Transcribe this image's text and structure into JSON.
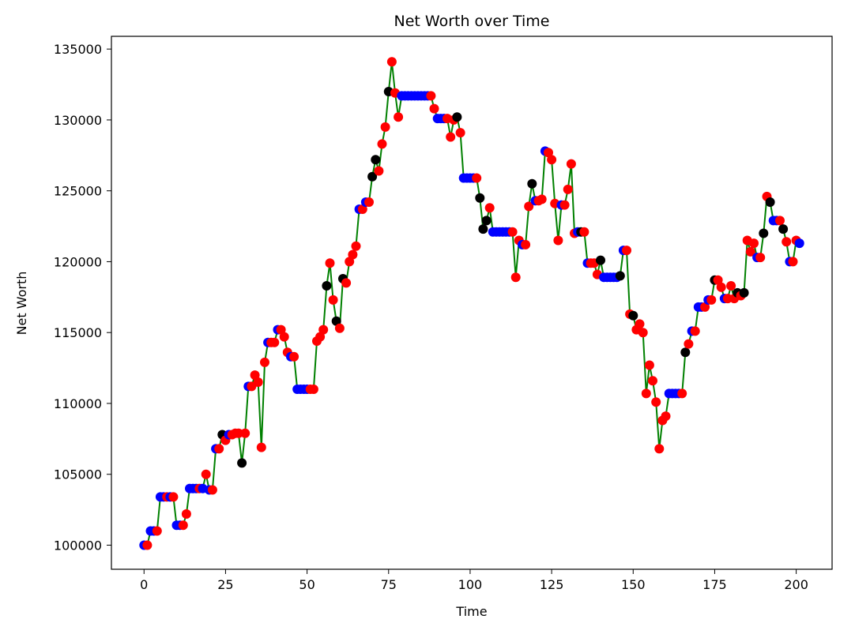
{
  "chart_data": {
    "type": "scatter",
    "title": "Net Worth over Time",
    "xlabel": "Time",
    "ylabel": "Net Worth",
    "xlim": [
      -10,
      211
    ],
    "ylim": [
      98300,
      135900
    ],
    "xticks": [
      0,
      25,
      50,
      75,
      100,
      125,
      150,
      175,
      200
    ],
    "yticks": [
      100000,
      105000,
      110000,
      115000,
      120000,
      125000,
      130000,
      135000
    ],
    "grid": false,
    "line_color": "#008000",
    "marker_colors": {
      "B": "#0000ff",
      "S": "#ff0000",
      "H": "#000000"
    },
    "points": [
      [
        0,
        100000,
        "B"
      ],
      [
        1,
        100000,
        "S"
      ],
      [
        2,
        101000,
        "B"
      ],
      [
        3,
        101000,
        "B"
      ],
      [
        4,
        101000,
        "S"
      ],
      [
        5,
        103400,
        "B"
      ],
      [
        6,
        103400,
        "B"
      ],
      [
        7,
        103400,
        "S"
      ],
      [
        8,
        103400,
        "B"
      ],
      [
        9,
        103400,
        "S"
      ],
      [
        10,
        101400,
        "B"
      ],
      [
        11,
        101400,
        "B"
      ],
      [
        12,
        101400,
        "S"
      ],
      [
        13,
        102200,
        "S"
      ],
      [
        14,
        104000,
        "B"
      ],
      [
        15,
        104000,
        "B"
      ],
      [
        16,
        104000,
        "B"
      ],
      [
        17,
        104000,
        "S"
      ],
      [
        18,
        104000,
        "B"
      ],
      [
        19,
        105000,
        "S"
      ],
      [
        20,
        103900,
        "B"
      ],
      [
        21,
        103900,
        "S"
      ],
      [
        22,
        106800,
        "B"
      ],
      [
        23,
        106800,
        "S"
      ],
      [
        24,
        107800,
        "H"
      ],
      [
        25,
        107400,
        "S"
      ],
      [
        26,
        107800,
        "B"
      ],
      [
        27,
        107800,
        "S"
      ],
      [
        28,
        107900,
        "S"
      ],
      [
        29,
        107900,
        "S"
      ],
      [
        30,
        105800,
        "H"
      ],
      [
        31,
        107900,
        "S"
      ],
      [
        32,
        111200,
        "B"
      ],
      [
        33,
        111200,
        "S"
      ],
      [
        34,
        112000,
        "S"
      ],
      [
        35,
        111500,
        "S"
      ],
      [
        36,
        106900,
        "S"
      ],
      [
        37,
        112900,
        "S"
      ],
      [
        38,
        114300,
        "B"
      ],
      [
        39,
        114300,
        "S"
      ],
      [
        40,
        114300,
        "S"
      ],
      [
        41,
        115200,
        "B"
      ],
      [
        42,
        115200,
        "S"
      ],
      [
        43,
        114700,
        "S"
      ],
      [
        44,
        113600,
        "S"
      ],
      [
        45,
        113300,
        "B"
      ],
      [
        46,
        113300,
        "S"
      ],
      [
        47,
        111000,
        "B"
      ],
      [
        48,
        111000,
        "B"
      ],
      [
        49,
        111000,
        "B"
      ],
      [
        50,
        111000,
        "B"
      ],
      [
        51,
        111000,
        "S"
      ],
      [
        52,
        111000,
        "S"
      ],
      [
        53,
        114400,
        "S"
      ],
      [
        54,
        114700,
        "S"
      ],
      [
        55,
        115200,
        "S"
      ],
      [
        56,
        118300,
        "H"
      ],
      [
        57,
        119900,
        "S"
      ],
      [
        58,
        117300,
        "S"
      ],
      [
        59,
        115800,
        "H"
      ],
      [
        60,
        115300,
        "S"
      ],
      [
        61,
        118800,
        "H"
      ],
      [
        62,
        118500,
        "S"
      ],
      [
        63,
        120000,
        "S"
      ],
      [
        64,
        120500,
        "S"
      ],
      [
        65,
        121100,
        "S"
      ],
      [
        66,
        123700,
        "B"
      ],
      [
        67,
        123700,
        "S"
      ],
      [
        68,
        124200,
        "B"
      ],
      [
        69,
        124200,
        "S"
      ],
      [
        70,
        126000,
        "H"
      ],
      [
        71,
        127200,
        "H"
      ],
      [
        72,
        126400,
        "S"
      ],
      [
        73,
        128300,
        "S"
      ],
      [
        74,
        129500,
        "S"
      ],
      [
        75,
        132000,
        "H"
      ],
      [
        76,
        134100,
        "S"
      ],
      [
        77,
        131900,
        "S"
      ],
      [
        78,
        130200,
        "S"
      ],
      [
        79,
        131700,
        "B"
      ],
      [
        80,
        131700,
        "B"
      ],
      [
        81,
        131700,
        "B"
      ],
      [
        82,
        131700,
        "B"
      ],
      [
        83,
        131700,
        "B"
      ],
      [
        84,
        131700,
        "B"
      ],
      [
        85,
        131700,
        "B"
      ],
      [
        86,
        131700,
        "B"
      ],
      [
        87,
        131700,
        "B"
      ],
      [
        88,
        131700,
        "S"
      ],
      [
        89,
        130800,
        "S"
      ],
      [
        90,
        130100,
        "B"
      ],
      [
        91,
        130100,
        "B"
      ],
      [
        92,
        130100,
        "B"
      ],
      [
        93,
        130100,
        "S"
      ],
      [
        94,
        128800,
        "S"
      ],
      [
        95,
        130000,
        "S"
      ],
      [
        96,
        130200,
        "H"
      ],
      [
        97,
        129100,
        "S"
      ],
      [
        98,
        125900,
        "B"
      ],
      [
        99,
        125900,
        "B"
      ],
      [
        100,
        125900,
        "B"
      ],
      [
        101,
        125900,
        "B"
      ],
      [
        102,
        125900,
        "S"
      ],
      [
        103,
        124500,
        "H"
      ],
      [
        104,
        122300,
        "H"
      ],
      [
        105,
        122900,
        "H"
      ],
      [
        106,
        123800,
        "S"
      ],
      [
        107,
        122100,
        "B"
      ],
      [
        108,
        122100,
        "B"
      ],
      [
        109,
        122100,
        "B"
      ],
      [
        110,
        122100,
        "B"
      ],
      [
        111,
        122100,
        "B"
      ],
      [
        112,
        122100,
        "B"
      ],
      [
        113,
        122100,
        "S"
      ],
      [
        114,
        118900,
        "S"
      ],
      [
        115,
        121500,
        "S"
      ],
      [
        116,
        121200,
        "B"
      ],
      [
        117,
        121200,
        "S"
      ],
      [
        118,
        123900,
        "S"
      ],
      [
        119,
        125500,
        "H"
      ],
      [
        120,
        124300,
        "B"
      ],
      [
        121,
        124300,
        "S"
      ],
      [
        122,
        124400,
        "S"
      ],
      [
        123,
        127800,
        "B"
      ],
      [
        124,
        127700,
        "S"
      ],
      [
        125,
        127200,
        "S"
      ],
      [
        126,
        124100,
        "S"
      ],
      [
        127,
        121500,
        "S"
      ],
      [
        128,
        124000,
        "B"
      ],
      [
        129,
        124000,
        "S"
      ],
      [
        130,
        125100,
        "S"
      ],
      [
        131,
        126900,
        "S"
      ],
      [
        132,
        122000,
        "S"
      ],
      [
        133,
        122100,
        "B"
      ],
      [
        134,
        122100,
        "H"
      ],
      [
        135,
        122100,
        "S"
      ],
      [
        136,
        119900,
        "B"
      ],
      [
        137,
        119900,
        "S"
      ],
      [
        138,
        119900,
        "S"
      ],
      [
        139,
        119100,
        "S"
      ],
      [
        140,
        120100,
        "H"
      ],
      [
        141,
        118900,
        "B"
      ],
      [
        142,
        118900,
        "B"
      ],
      [
        143,
        118900,
        "B"
      ],
      [
        144,
        118900,
        "B"
      ],
      [
        145,
        118900,
        "B"
      ],
      [
        146,
        119000,
        "H"
      ],
      [
        147,
        120800,
        "B"
      ],
      [
        148,
        120800,
        "S"
      ],
      [
        149,
        116300,
        "S"
      ],
      [
        150,
        116200,
        "H"
      ],
      [
        151,
        115200,
        "S"
      ],
      [
        152,
        115600,
        "S"
      ],
      [
        153,
        115000,
        "S"
      ],
      [
        154,
        110700,
        "S"
      ],
      [
        155,
        112700,
        "S"
      ],
      [
        156,
        111600,
        "S"
      ],
      [
        157,
        110100,
        "S"
      ],
      [
        158,
        106800,
        "S"
      ],
      [
        159,
        108800,
        "S"
      ],
      [
        160,
        109100,
        "S"
      ],
      [
        161,
        110700,
        "B"
      ],
      [
        162,
        110700,
        "B"
      ],
      [
        163,
        110700,
        "B"
      ],
      [
        164,
        110700,
        "B"
      ],
      [
        165,
        110700,
        "S"
      ],
      [
        166,
        113600,
        "H"
      ],
      [
        167,
        114200,
        "S"
      ],
      [
        168,
        115100,
        "B"
      ],
      [
        169,
        115100,
        "S"
      ],
      [
        170,
        116800,
        "B"
      ],
      [
        171,
        116800,
        "B"
      ],
      [
        172,
        116800,
        "S"
      ],
      [
        173,
        117300,
        "B"
      ],
      [
        174,
        117300,
        "S"
      ],
      [
        175,
        118700,
        "H"
      ],
      [
        176,
        118700,
        "S"
      ],
      [
        177,
        118200,
        "S"
      ],
      [
        178,
        117400,
        "B"
      ],
      [
        179,
        117400,
        "S"
      ],
      [
        180,
        118300,
        "S"
      ],
      [
        181,
        117400,
        "S"
      ],
      [
        182,
        117800,
        "H"
      ],
      [
        183,
        117600,
        "S"
      ],
      [
        184,
        117800,
        "H"
      ],
      [
        185,
        121500,
        "S"
      ],
      [
        186,
        120700,
        "S"
      ],
      [
        187,
        121300,
        "S"
      ],
      [
        188,
        120300,
        "B"
      ],
      [
        189,
        120300,
        "S"
      ],
      [
        190,
        122000,
        "H"
      ],
      [
        191,
        124600,
        "S"
      ],
      [
        192,
        124200,
        "H"
      ],
      [
        193,
        122900,
        "B"
      ],
      [
        194,
        122900,
        "B"
      ],
      [
        195,
        122900,
        "S"
      ],
      [
        196,
        122300,
        "H"
      ],
      [
        197,
        121400,
        "S"
      ],
      [
        198,
        120000,
        "B"
      ],
      [
        199,
        120000,
        "S"
      ],
      [
        200,
        121500,
        "S"
      ],
      [
        201,
        121300,
        "B"
      ]
    ]
  }
}
